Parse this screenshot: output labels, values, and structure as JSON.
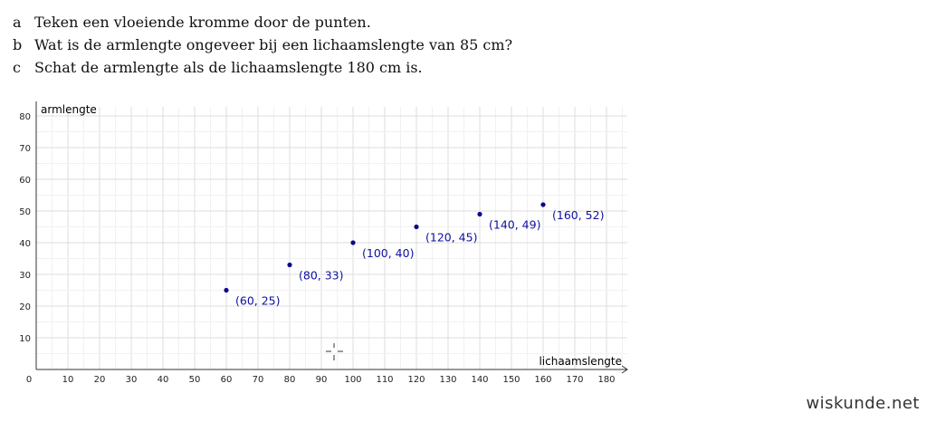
{
  "questions": [
    {
      "letter": "a",
      "text": "Teken een vloeiende kromme door de punten."
    },
    {
      "letter": "b",
      "text": "Wat is de armlengte ongeveer bij een lichaamslengte van 85 cm?"
    },
    {
      "letter": "c",
      "text": "Schat de armlengte als de lichaamslengte 180 cm is."
    }
  ],
  "chart_data": {
    "type": "scatter",
    "xlabel": "lichaamslengte",
    "ylabel": "armlengte",
    "xlim": [
      0,
      190
    ],
    "ylim": [
      0,
      83
    ],
    "x_ticks": [
      0,
      10,
      20,
      30,
      40,
      50,
      60,
      70,
      80,
      90,
      100,
      110,
      120,
      130,
      140,
      150,
      160,
      170,
      180
    ],
    "y_ticks": [
      10,
      20,
      30,
      40,
      50,
      60,
      70,
      80
    ],
    "grid": true,
    "point_color": "#0a0a8a",
    "points": [
      {
        "x": 60,
        "y": 25,
        "label": "(60, 25)"
      },
      {
        "x": 80,
        "y": 33,
        "label": "(80, 33)"
      },
      {
        "x": 100,
        "y": 40,
        "label": "(100, 40)"
      },
      {
        "x": 120,
        "y": 45,
        "label": "(120, 45)"
      },
      {
        "x": 140,
        "y": 49,
        "label": "(140, 49)"
      },
      {
        "x": 160,
        "y": 52,
        "label": "(160, 52)"
      }
    ]
  },
  "watermark": "wiskunde.net"
}
